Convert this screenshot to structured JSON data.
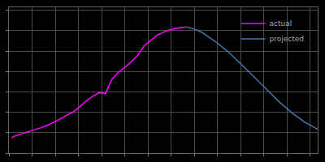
{
  "chart_data": {
    "type": "line",
    "series": [
      {
        "name": "actual",
        "color": "#ff00ff",
        "x": [
          1872,
          1875,
          1880,
          1885,
          1890,
          1895,
          1900,
          1905,
          1910,
          1915,
          1920,
          1925,
          1930,
          1935,
          1940,
          1945,
          1950,
          1955,
          1960,
          1965,
          1970,
          1975,
          1980,
          1985,
          1990,
          1995,
          2000,
          2005,
          2008
        ],
        "values": [
          33.1,
          34.8,
          36.6,
          38.2,
          39.9,
          41.8,
          43.8,
          46.4,
          49.2,
          52.5,
          55.4,
          59.7,
          64.5,
          68.6,
          71.9,
          71.0,
          83.2,
          89.3,
          93.4,
          98.3,
          103.7,
          111.9,
          116.8,
          121.0,
          123.6,
          125.6,
          126.9,
          127.7,
          128.1
        ]
      },
      {
        "name": "projected",
        "color": "#4477aa",
        "x": [
          2008,
          2010,
          2015,
          2020,
          2025,
          2030,
          2040,
          2050,
          2060,
          2070,
          2080,
          2090,
          2100,
          2110
        ],
        "values": [
          128.1,
          127.5,
          126.0,
          123.5,
          120.0,
          116.0,
          107.3,
          97.0,
          86.0,
          75.0,
          64.0,
          54.5,
          46.5,
          40.5
        ]
      }
    ],
    "xlim": [
      1870,
      2110
    ],
    "ylim": [
      20,
      145
    ],
    "xticks": [
      1870,
      1888,
      1906,
      1924,
      1942,
      1960,
      1978,
      1996,
      2014,
      2032,
      2050,
      2068,
      2086,
      2104
    ],
    "yticks": [
      20,
      37.5,
      55,
      72.5,
      90,
      107.5,
      125,
      142.5
    ],
    "grid": true,
    "tick_labels": false,
    "legend": "upper right"
  }
}
